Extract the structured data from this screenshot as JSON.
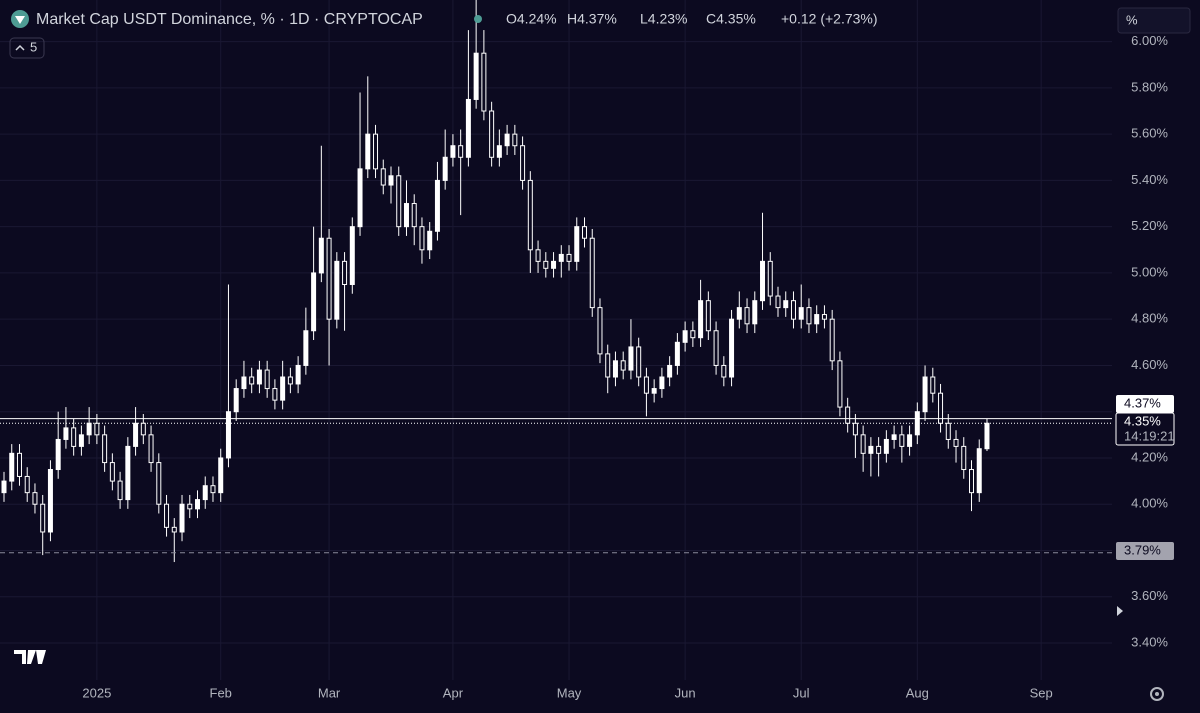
{
  "chart_data": {
    "type": "candlestick",
    "title": "Market Cap USDT Dominance, % · 1D · CRYPTOCAP",
    "header_ohlc": [
      "O4.24%",
      "H4.37%",
      "L4.23%",
      "C4.35%",
      "+0.12 (+2.73%)"
    ],
    "indicator_count": 5,
    "scale_input": "%",
    "color": "#ffffff",
    "grid": true,
    "categories": [
      null,
      null,
      null,
      null,
      null,
      null,
      null,
      null,
      null,
      null,
      null,
      null,
      "2025",
      null,
      null,
      null,
      null,
      null,
      null,
      null,
      null,
      null,
      null,
      null,
      null,
      null,
      null,
      null,
      "Feb",
      null,
      null,
      null,
      null,
      null,
      null,
      null,
      null,
      null,
      null,
      null,
      null,
      null,
      "Mar",
      null,
      null,
      null,
      null,
      null,
      null,
      null,
      null,
      null,
      null,
      null,
      null,
      null,
      null,
      null,
      "Apr",
      null,
      null,
      null,
      null,
      null,
      null,
      null,
      null,
      null,
      null,
      null,
      null,
      null,
      null,
      "May",
      null,
      null,
      null,
      null,
      null,
      null,
      null,
      null,
      null,
      null,
      null,
      null,
      null,
      null,
      "Jun",
      null,
      null,
      null,
      null,
      null,
      null,
      null,
      null,
      null,
      null,
      null,
      null,
      null,
      null,
      "Jul",
      null,
      null,
      null,
      null,
      null,
      null,
      null,
      null,
      null,
      null,
      null,
      null,
      null,
      null,
      "Aug",
      null,
      null,
      null,
      null,
      null,
      null,
      null,
      null,
      null,
      null,
      null,
      null,
      null,
      null,
      null,
      "Sep"
    ],
    "open": [
      4.05,
      4.1,
      4.22,
      4.12,
      4.05,
      4.0,
      3.88,
      4.15,
      4.28,
      4.33,
      4.25,
      4.3,
      4.35,
      4.3,
      4.18,
      4.1,
      4.02,
      4.25,
      4.35,
      4.3,
      4.18,
      4.0,
      3.9,
      3.88,
      4.0,
      3.98,
      4.02,
      4.08,
      4.05,
      4.2,
      4.4,
      4.5,
      4.55,
      4.52,
      4.58,
      4.5,
      4.45,
      4.55,
      4.52,
      4.6,
      4.75,
      5.0,
      5.15,
      4.8,
      5.05,
      4.95,
      5.2,
      5.45,
      5.6,
      5.45,
      5.38,
      5.42,
      5.2,
      5.3,
      5.2,
      5.1,
      5.18,
      5.4,
      5.5,
      5.55,
      5.5,
      5.75,
      5.95,
      5.7,
      5.5,
      5.55,
      5.6,
      5.55,
      5.4,
      5.1,
      5.05,
      5.02,
      5.05,
      5.08,
      5.05,
      5.2,
      5.15,
      4.85,
      4.65,
      4.55,
      4.62,
      4.58,
      4.68,
      4.55,
      4.48,
      4.5,
      4.55,
      4.6,
      4.7,
      4.75,
      4.72,
      4.88,
      4.75,
      4.6,
      4.55,
      4.8,
      4.85,
      4.78,
      4.88,
      5.05,
      4.9,
      4.85,
      4.88,
      4.8,
      4.85,
      4.78,
      4.82,
      4.8,
      4.62,
      4.42,
      4.35,
      4.3,
      4.22,
      4.25,
      4.22,
      4.28,
      4.3,
      4.25,
      4.3,
      4.4,
      4.55,
      4.48,
      4.35,
      4.28,
      4.25,
      4.15,
      4.05,
      4.24,
      null,
      null,
      null,
      null,
      null,
      null,
      null
    ],
    "high": [
      4.14,
      4.26,
      4.26,
      4.16,
      4.09,
      4.04,
      4.19,
      4.4,
      4.42,
      4.37,
      4.34,
      4.42,
      4.39,
      4.34,
      4.22,
      4.14,
      4.29,
      4.42,
      4.39,
      4.34,
      4.22,
      4.04,
      3.94,
      4.04,
      4.04,
      4.06,
      4.12,
      4.12,
      4.24,
      4.95,
      4.54,
      4.62,
      4.59,
      4.62,
      4.62,
      4.54,
      4.62,
      4.59,
      4.64,
      4.85,
      5.2,
      5.55,
      5.19,
      5.09,
      5.09,
      5.24,
      5.78,
      5.85,
      5.64,
      5.49,
      5.46,
      5.46,
      5.4,
      5.34,
      5.24,
      5.22,
      5.48,
      5.62,
      5.6,
      5.62,
      6.05,
      6.18,
      6.05,
      5.74,
      5.62,
      5.64,
      5.64,
      5.59,
      5.44,
      5.14,
      5.09,
      5.09,
      5.12,
      5.12,
      5.24,
      5.24,
      5.19,
      4.89,
      4.69,
      4.66,
      4.66,
      4.8,
      4.72,
      4.59,
      4.54,
      4.59,
      4.64,
      4.74,
      4.79,
      4.79,
      4.97,
      4.92,
      4.79,
      4.64,
      4.84,
      4.92,
      4.89,
      4.92,
      5.26,
      5.09,
      4.94,
      4.92,
      4.92,
      4.95,
      4.89,
      4.86,
      4.86,
      4.84,
      4.66,
      4.46,
      4.39,
      4.34,
      4.29,
      4.29,
      4.32,
      4.34,
      4.34,
      4.34,
      4.44,
      4.6,
      4.59,
      4.52,
      4.39,
      4.32,
      4.29,
      4.19,
      4.28,
      4.37,
      null,
      null,
      null,
      null,
      null,
      null,
      null
    ],
    "low": [
      4.01,
      4.06,
      4.08,
      4.01,
      3.96,
      3.78,
      3.84,
      4.11,
      4.24,
      4.21,
      4.21,
      4.26,
      4.26,
      4.14,
      4.06,
      3.98,
      3.98,
      4.21,
      4.26,
      4.14,
      3.96,
      3.86,
      3.75,
      3.84,
      3.94,
      3.94,
      3.98,
      4.01,
      4.01,
      4.16,
      4.36,
      4.46,
      4.48,
      4.48,
      4.46,
      4.41,
      4.41,
      4.48,
      4.48,
      4.56,
      4.71,
      4.96,
      4.6,
      4.76,
      4.75,
      4.91,
      5.16,
      5.41,
      5.41,
      5.34,
      5.3,
      5.16,
      5.16,
      5.12,
      5.04,
      5.06,
      5.14,
      5.36,
      5.46,
      5.25,
      5.46,
      5.71,
      5.66,
      5.46,
      5.46,
      5.51,
      5.51,
      5.36,
      5.0,
      5.0,
      4.98,
      4.98,
      4.98,
      5.01,
      5.01,
      5.11,
      4.81,
      4.61,
      4.48,
      4.51,
      4.54,
      4.54,
      4.51,
      4.38,
      4.44,
      4.46,
      4.51,
      4.56,
      4.66,
      4.68,
      4.68,
      4.71,
      4.56,
      4.51,
      4.51,
      4.76,
      4.74,
      4.74,
      4.84,
      4.86,
      4.81,
      4.81,
      4.76,
      4.76,
      4.74,
      4.74,
      4.76,
      4.58,
      4.38,
      4.31,
      4.2,
      4.14,
      4.12,
      4.12,
      4.18,
      4.24,
      4.18,
      4.21,
      4.26,
      4.36,
      4.44,
      4.31,
      4.24,
      4.18,
      4.11,
      3.97,
      4.01,
      4.23,
      null,
      null,
      null,
      null,
      null,
      null,
      null
    ],
    "close": [
      4.1,
      4.22,
      4.12,
      4.05,
      4.0,
      3.88,
      4.15,
      4.28,
      4.33,
      4.25,
      4.3,
      4.35,
      4.3,
      4.18,
      4.1,
      4.02,
      4.25,
      4.35,
      4.3,
      4.18,
      4.0,
      3.9,
      3.88,
      4.0,
      3.98,
      4.02,
      4.08,
      4.05,
      4.2,
      4.4,
      4.5,
      4.55,
      4.52,
      4.58,
      4.5,
      4.45,
      4.55,
      4.52,
      4.6,
      4.75,
      5.0,
      5.15,
      4.8,
      5.05,
      4.95,
      5.2,
      5.45,
      5.6,
      5.45,
      5.38,
      5.42,
      5.2,
      5.3,
      5.2,
      5.1,
      5.18,
      5.4,
      5.5,
      5.55,
      5.5,
      5.75,
      5.95,
      5.7,
      5.5,
      5.55,
      5.6,
      5.55,
      5.4,
      5.1,
      5.05,
      5.02,
      5.05,
      5.08,
      5.05,
      5.2,
      5.15,
      4.85,
      4.65,
      4.55,
      4.62,
      4.58,
      4.68,
      4.55,
      4.48,
      4.5,
      4.55,
      4.6,
      4.7,
      4.75,
      4.72,
      4.88,
      4.75,
      4.6,
      4.55,
      4.8,
      4.85,
      4.78,
      4.88,
      5.05,
      4.9,
      4.85,
      4.88,
      4.8,
      4.85,
      4.78,
      4.82,
      4.8,
      4.62,
      4.42,
      4.35,
      4.3,
      4.22,
      4.25,
      4.22,
      4.28,
      4.3,
      4.25,
      4.3,
      4.4,
      4.55,
      4.48,
      4.35,
      4.28,
      4.25,
      4.15,
      4.05,
      4.24,
      4.35,
      null,
      null,
      null,
      null,
      null,
      null,
      null
    ],
    "ylim": [
      3.24,
      6.18
    ],
    "yticks": [
      {
        "value": 3.4,
        "label": "3.40%"
      },
      {
        "value": 3.6,
        "label": "3.60%"
      },
      {
        "value": 3.8,
        "label": "3.80%"
      },
      {
        "value": 4.0,
        "label": "4.00%"
      },
      {
        "value": 4.2,
        "label": "4.20%"
      },
      {
        "value": 4.4,
        "label": "4.40%"
      },
      {
        "value": 4.6,
        "label": "4.60%"
      },
      {
        "value": 4.8,
        "label": "4.80%"
      },
      {
        "value": 5.0,
        "label": "5.00%"
      },
      {
        "value": 5.2,
        "label": "5.20%"
      },
      {
        "value": 5.4,
        "label": "5.40%"
      },
      {
        "value": 5.6,
        "label": "5.60%"
      },
      {
        "value": 5.8,
        "label": "5.80%"
      },
      {
        "value": 6.0,
        "label": "6.00%"
      }
    ],
    "price_lines": [
      {
        "value": 4.37,
        "label": "4.37%",
        "style": "solid"
      },
      {
        "value": 4.35,
        "label": "4.35%",
        "countdown": "14:19:21",
        "style": "dotted"
      },
      {
        "value": 3.79,
        "label": "3.79%",
        "style": "dashed"
      }
    ]
  }
}
